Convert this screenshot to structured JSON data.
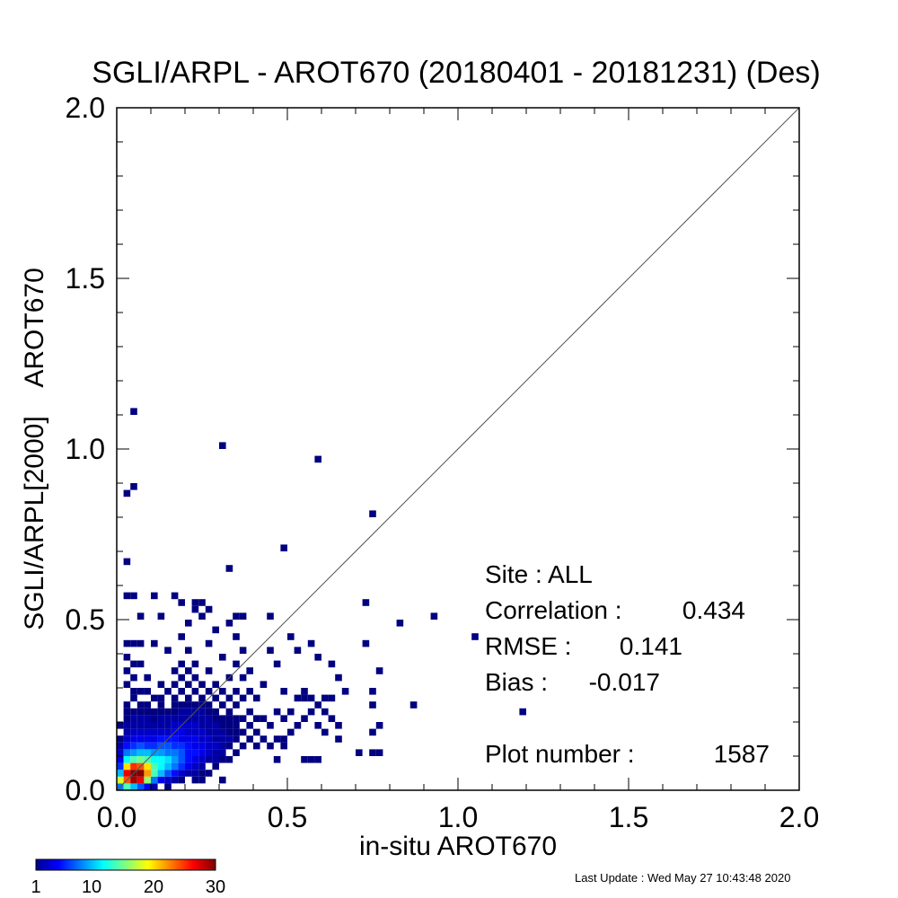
{
  "chart_data": {
    "type": "heatmap",
    "title": "SGLI/ARPL - AROT670 (20180401 - 20181231) (Des)",
    "xlabel": "in-situ AROT670",
    "ylabel": "SGLI/ARPL[2000]    AROT670",
    "xlim": [
      0.0,
      2.0
    ],
    "ylim": [
      0.0,
      2.0
    ],
    "x_ticks": [
      "0.0",
      "0.5",
      "1.0",
      "1.5",
      "2.0"
    ],
    "y_ticks": [
      "0.0",
      "0.5",
      "1.0",
      "1.5",
      "2.0"
    ],
    "bin_size": 0.02,
    "one_to_one_line": true,
    "colorbar": {
      "min": 1,
      "max": 30,
      "tick_labels": [
        "1",
        "10",
        "20",
        "30"
      ]
    },
    "stats": {
      "site": "Site : ALL",
      "correlation_label": "Correlation :",
      "correlation": "0.434",
      "rmse_label": "RMSE :",
      "rmse": "0.141",
      "bias_label": "Bias :",
      "bias": "-0.017",
      "plot_number_label": "Plot number :",
      "plot_number": "1587"
    },
    "cells": [
      [
        0.01,
        0.01,
        8
      ],
      [
        0.01,
        0.03,
        18
      ],
      [
        0.01,
        0.05,
        10
      ],
      [
        0.01,
        0.07,
        6
      ],
      [
        0.01,
        0.09,
        4
      ],
      [
        0.01,
        0.11,
        3
      ],
      [
        0.01,
        0.13,
        2
      ],
      [
        0.01,
        0.15,
        1
      ],
      [
        0.01,
        0.19,
        1
      ],
      [
        0.03,
        0.01,
        14
      ],
      [
        0.03,
        0.03,
        24
      ],
      [
        0.03,
        0.05,
        27
      ],
      [
        0.03,
        0.07,
        20
      ],
      [
        0.03,
        0.09,
        12
      ],
      [
        0.03,
        0.11,
        8
      ],
      [
        0.03,
        0.13,
        5
      ],
      [
        0.03,
        0.15,
        3
      ],
      [
        0.03,
        0.17,
        2
      ],
      [
        0.03,
        0.19,
        2
      ],
      [
        0.03,
        0.21,
        1
      ],
      [
        0.03,
        0.23,
        1
      ],
      [
        0.03,
        0.25,
        1
      ],
      [
        0.03,
        0.31,
        1
      ],
      [
        0.03,
        0.35,
        1
      ],
      [
        0.03,
        0.39,
        1
      ],
      [
        0.03,
        0.43,
        1
      ],
      [
        0.03,
        0.57,
        1
      ],
      [
        0.03,
        0.67,
        1
      ],
      [
        0.03,
        0.87,
        1
      ],
      [
        0.05,
        0.01,
        10
      ],
      [
        0.05,
        0.03,
        29
      ],
      [
        0.05,
        0.05,
        30
      ],
      [
        0.05,
        0.07,
        25
      ],
      [
        0.05,
        0.09,
        14
      ],
      [
        0.05,
        0.11,
        9
      ],
      [
        0.05,
        0.13,
        6
      ],
      [
        0.05,
        0.15,
        4
      ],
      [
        0.05,
        0.17,
        3
      ],
      [
        0.05,
        0.19,
        2
      ],
      [
        0.05,
        0.21,
        2
      ],
      [
        0.05,
        0.23,
        1
      ],
      [
        0.05,
        0.27,
        1
      ],
      [
        0.05,
        0.29,
        1
      ],
      [
        0.05,
        0.33,
        1
      ],
      [
        0.05,
        0.37,
        1
      ],
      [
        0.05,
        0.43,
        1
      ],
      [
        0.05,
        0.57,
        1
      ],
      [
        0.05,
        0.89,
        1
      ],
      [
        0.05,
        1.11,
        1
      ],
      [
        0.07,
        0.01,
        7
      ],
      [
        0.07,
        0.03,
        27
      ],
      [
        0.07,
        0.05,
        30
      ],
      [
        0.07,
        0.07,
        24
      ],
      [
        0.07,
        0.09,
        15
      ],
      [
        0.07,
        0.11,
        10
      ],
      [
        0.07,
        0.13,
        7
      ],
      [
        0.07,
        0.15,
        4
      ],
      [
        0.07,
        0.17,
        3
      ],
      [
        0.07,
        0.19,
        2
      ],
      [
        0.07,
        0.21,
        2
      ],
      [
        0.07,
        0.23,
        1
      ],
      [
        0.07,
        0.25,
        1
      ],
      [
        0.07,
        0.29,
        1
      ],
      [
        0.07,
        0.37,
        1
      ],
      [
        0.07,
        0.43,
        1
      ],
      [
        0.07,
        0.51,
        1
      ],
      [
        0.09,
        0.01,
        4
      ],
      [
        0.09,
        0.03,
        16
      ],
      [
        0.09,
        0.05,
        22
      ],
      [
        0.09,
        0.07,
        20
      ],
      [
        0.09,
        0.09,
        14
      ],
      [
        0.09,
        0.11,
        10
      ],
      [
        0.09,
        0.13,
        6
      ],
      [
        0.09,
        0.15,
        4
      ],
      [
        0.09,
        0.17,
        3
      ],
      [
        0.09,
        0.19,
        2
      ],
      [
        0.09,
        0.21,
        2
      ],
      [
        0.09,
        0.23,
        1
      ],
      [
        0.09,
        0.25,
        1
      ],
      [
        0.09,
        0.29,
        1
      ],
      [
        0.09,
        0.33,
        1
      ],
      [
        0.11,
        0.01,
        2
      ],
      [
        0.11,
        0.03,
        8
      ],
      [
        0.11,
        0.05,
        14
      ],
      [
        0.11,
        0.07,
        14
      ],
      [
        0.11,
        0.09,
        12
      ],
      [
        0.11,
        0.11,
        9
      ],
      [
        0.11,
        0.13,
        6
      ],
      [
        0.11,
        0.15,
        4
      ],
      [
        0.11,
        0.17,
        3
      ],
      [
        0.11,
        0.19,
        2
      ],
      [
        0.11,
        0.21,
        1
      ],
      [
        0.11,
        0.23,
        1
      ],
      [
        0.11,
        0.27,
        1
      ],
      [
        0.11,
        0.43,
        1
      ],
      [
        0.11,
        0.57,
        1
      ],
      [
        0.13,
        0.03,
        4
      ],
      [
        0.13,
        0.05,
        10
      ],
      [
        0.13,
        0.07,
        12
      ],
      [
        0.13,
        0.09,
        12
      ],
      [
        0.13,
        0.11,
        9
      ],
      [
        0.13,
        0.13,
        7
      ],
      [
        0.13,
        0.15,
        5
      ],
      [
        0.13,
        0.17,
        3
      ],
      [
        0.13,
        0.19,
        2
      ],
      [
        0.13,
        0.21,
        2
      ],
      [
        0.13,
        0.23,
        1
      ],
      [
        0.13,
        0.25,
        1
      ],
      [
        0.13,
        0.27,
        1
      ],
      [
        0.13,
        0.31,
        1
      ],
      [
        0.13,
        0.51,
        1
      ],
      [
        0.15,
        0.01,
        1
      ],
      [
        0.15,
        0.03,
        3
      ],
      [
        0.15,
        0.05,
        7
      ],
      [
        0.15,
        0.07,
        10
      ],
      [
        0.15,
        0.09,
        11
      ],
      [
        0.15,
        0.11,
        8
      ],
      [
        0.15,
        0.13,
        7
      ],
      [
        0.15,
        0.15,
        5
      ],
      [
        0.15,
        0.17,
        3
      ],
      [
        0.15,
        0.19,
        2
      ],
      [
        0.15,
        0.21,
        2
      ],
      [
        0.15,
        0.23,
        1
      ],
      [
        0.15,
        0.29,
        1
      ],
      [
        0.15,
        0.41,
        1
      ],
      [
        0.17,
        0.03,
        2
      ],
      [
        0.17,
        0.05,
        5
      ],
      [
        0.17,
        0.07,
        8
      ],
      [
        0.17,
        0.09,
        9
      ],
      [
        0.17,
        0.11,
        8
      ],
      [
        0.17,
        0.13,
        6
      ],
      [
        0.17,
        0.15,
        5
      ],
      [
        0.17,
        0.17,
        4
      ],
      [
        0.17,
        0.19,
        3
      ],
      [
        0.17,
        0.21,
        2
      ],
      [
        0.17,
        0.23,
        1
      ],
      [
        0.17,
        0.25,
        1
      ],
      [
        0.17,
        0.27,
        1
      ],
      [
        0.17,
        0.31,
        1
      ],
      [
        0.17,
        0.35,
        1
      ],
      [
        0.17,
        0.57,
        1
      ],
      [
        0.19,
        0.03,
        1
      ],
      [
        0.19,
        0.05,
        3
      ],
      [
        0.19,
        0.07,
        6
      ],
      [
        0.19,
        0.09,
        7
      ],
      [
        0.19,
        0.11,
        7
      ],
      [
        0.19,
        0.13,
        6
      ],
      [
        0.19,
        0.15,
        4
      ],
      [
        0.19,
        0.17,
        4
      ],
      [
        0.19,
        0.19,
        3
      ],
      [
        0.19,
        0.21,
        2
      ],
      [
        0.19,
        0.23,
        2
      ],
      [
        0.19,
        0.25,
        1
      ],
      [
        0.19,
        0.29,
        1
      ],
      [
        0.19,
        0.33,
        1
      ],
      [
        0.19,
        0.37,
        1
      ],
      [
        0.19,
        0.45,
        1
      ],
      [
        0.19,
        0.55,
        1
      ],
      [
        0.21,
        0.05,
        2
      ],
      [
        0.21,
        0.07,
        4
      ],
      [
        0.21,
        0.09,
        5
      ],
      [
        0.21,
        0.11,
        5
      ],
      [
        0.21,
        0.13,
        5
      ],
      [
        0.21,
        0.15,
        4
      ],
      [
        0.21,
        0.17,
        3
      ],
      [
        0.21,
        0.19,
        3
      ],
      [
        0.21,
        0.21,
        2
      ],
      [
        0.21,
        0.23,
        2
      ],
      [
        0.21,
        0.25,
        1
      ],
      [
        0.21,
        0.27,
        1
      ],
      [
        0.21,
        0.31,
        1
      ],
      [
        0.21,
        0.35,
        1
      ],
      [
        0.21,
        0.41,
        1
      ],
      [
        0.21,
        0.49,
        1
      ],
      [
        0.23,
        0.03,
        1
      ],
      [
        0.23,
        0.05,
        2
      ],
      [
        0.23,
        0.07,
        3
      ],
      [
        0.23,
        0.09,
        4
      ],
      [
        0.23,
        0.11,
        5
      ],
      [
        0.23,
        0.13,
        4
      ],
      [
        0.23,
        0.15,
        4
      ],
      [
        0.23,
        0.17,
        3
      ],
      [
        0.23,
        0.19,
        3
      ],
      [
        0.23,
        0.21,
        2
      ],
      [
        0.23,
        0.23,
        2
      ],
      [
        0.23,
        0.25,
        1
      ],
      [
        0.23,
        0.29,
        1
      ],
      [
        0.23,
        0.33,
        1
      ],
      [
        0.23,
        0.37,
        1
      ],
      [
        0.23,
        0.53,
        1
      ],
      [
        0.23,
        0.55,
        1
      ],
      [
        0.25,
        0.03,
        1
      ],
      [
        0.25,
        0.05,
        1
      ],
      [
        0.25,
        0.07,
        2
      ],
      [
        0.25,
        0.09,
        3
      ],
      [
        0.25,
        0.11,
        4
      ],
      [
        0.25,
        0.13,
        4
      ],
      [
        0.25,
        0.15,
        3
      ],
      [
        0.25,
        0.17,
        3
      ],
      [
        0.25,
        0.19,
        2
      ],
      [
        0.25,
        0.21,
        2
      ],
      [
        0.25,
        0.23,
        2
      ],
      [
        0.25,
        0.25,
        1
      ],
      [
        0.25,
        0.27,
        1
      ],
      [
        0.25,
        0.31,
        1
      ],
      [
        0.25,
        0.51,
        1
      ],
      [
        0.25,
        0.55,
        1
      ],
      [
        0.27,
        0.05,
        1
      ],
      [
        0.27,
        0.09,
        2
      ],
      [
        0.27,
        0.11,
        3
      ],
      [
        0.27,
        0.13,
        3
      ],
      [
        0.27,
        0.15,
        3
      ],
      [
        0.27,
        0.17,
        2
      ],
      [
        0.27,
        0.19,
        2
      ],
      [
        0.27,
        0.21,
        2
      ],
      [
        0.27,
        0.23,
        1
      ],
      [
        0.27,
        0.25,
        1
      ],
      [
        0.27,
        0.29,
        1
      ],
      [
        0.27,
        0.35,
        1
      ],
      [
        0.27,
        0.43,
        1
      ],
      [
        0.27,
        0.53,
        1
      ],
      [
        0.29,
        0.07,
        1
      ],
      [
        0.29,
        0.09,
        2
      ],
      [
        0.29,
        0.11,
        2
      ],
      [
        0.29,
        0.13,
        3
      ],
      [
        0.29,
        0.15,
        2
      ],
      [
        0.29,
        0.17,
        2
      ],
      [
        0.29,
        0.19,
        2
      ],
      [
        0.29,
        0.21,
        1
      ],
      [
        0.29,
        0.23,
        1
      ],
      [
        0.29,
        0.27,
        1
      ],
      [
        0.29,
        0.31,
        1
      ],
      [
        0.29,
        0.47,
        1
      ],
      [
        0.31,
        0.03,
        1
      ],
      [
        0.31,
        0.09,
        1
      ],
      [
        0.31,
        0.11,
        2
      ],
      [
        0.31,
        0.13,
        2
      ],
      [
        0.31,
        0.15,
        2
      ],
      [
        0.31,
        0.17,
        2
      ],
      [
        0.31,
        0.19,
        1
      ],
      [
        0.31,
        0.21,
        1
      ],
      [
        0.31,
        0.25,
        1
      ],
      [
        0.31,
        0.29,
        1
      ],
      [
        0.31,
        0.39,
        1
      ],
      [
        0.31,
        1.01,
        1
      ],
      [
        0.33,
        0.09,
        1
      ],
      [
        0.33,
        0.13,
        1
      ],
      [
        0.33,
        0.15,
        2
      ],
      [
        0.33,
        0.17,
        1
      ],
      [
        0.33,
        0.19,
        1
      ],
      [
        0.33,
        0.21,
        1
      ],
      [
        0.33,
        0.23,
        1
      ],
      [
        0.33,
        0.27,
        1
      ],
      [
        0.33,
        0.33,
        1
      ],
      [
        0.33,
        0.49,
        1
      ],
      [
        0.33,
        0.65,
        1
      ],
      [
        0.35,
        0.11,
        1
      ],
      [
        0.35,
        0.15,
        1
      ],
      [
        0.35,
        0.17,
        1
      ],
      [
        0.35,
        0.19,
        1
      ],
      [
        0.35,
        0.21,
        1
      ],
      [
        0.35,
        0.25,
        1
      ],
      [
        0.35,
        0.29,
        1
      ],
      [
        0.35,
        0.37,
        1
      ],
      [
        0.35,
        0.45,
        1
      ],
      [
        0.35,
        0.51,
        1
      ],
      [
        0.37,
        0.13,
        1
      ],
      [
        0.37,
        0.17,
        1
      ],
      [
        0.37,
        0.21,
        1
      ],
      [
        0.37,
        0.27,
        1
      ],
      [
        0.37,
        0.33,
        1
      ],
      [
        0.37,
        0.41,
        1
      ],
      [
        0.37,
        0.51,
        1
      ],
      [
        0.39,
        0.15,
        1
      ],
      [
        0.39,
        0.19,
        1
      ],
      [
        0.39,
        0.23,
        1
      ],
      [
        0.39,
        0.29,
        1
      ],
      [
        0.39,
        0.35,
        1
      ],
      [
        0.41,
        0.13,
        1
      ],
      [
        0.41,
        0.17,
        1
      ],
      [
        0.41,
        0.21,
        1
      ],
      [
        0.41,
        0.27,
        1
      ],
      [
        0.43,
        0.15,
        1
      ],
      [
        0.43,
        0.21,
        1
      ],
      [
        0.43,
        0.31,
        1
      ],
      [
        0.45,
        0.13,
        1
      ],
      [
        0.45,
        0.19,
        1
      ],
      [
        0.45,
        0.41,
        1
      ],
      [
        0.45,
        0.51,
        1
      ],
      [
        0.47,
        0.09,
        1
      ],
      [
        0.47,
        0.15,
        1
      ],
      [
        0.47,
        0.23,
        1
      ],
      [
        0.47,
        0.37,
        1
      ],
      [
        0.49,
        0.13,
        1
      ],
      [
        0.49,
        0.15,
        1
      ],
      [
        0.49,
        0.21,
        1
      ],
      [
        0.49,
        0.29,
        1
      ],
      [
        0.49,
        0.71,
        1
      ],
      [
        0.51,
        0.17,
        1
      ],
      [
        0.51,
        0.23,
        1
      ],
      [
        0.51,
        0.45,
        1
      ],
      [
        0.53,
        0.19,
        1
      ],
      [
        0.53,
        0.27,
        1
      ],
      [
        0.53,
        0.41,
        1
      ],
      [
        0.55,
        0.09,
        1
      ],
      [
        0.55,
        0.21,
        1
      ],
      [
        0.55,
        0.27,
        1
      ],
      [
        0.55,
        0.29,
        1
      ],
      [
        0.57,
        0.09,
        1
      ],
      [
        0.57,
        0.23,
        1
      ],
      [
        0.57,
        0.27,
        1
      ],
      [
        0.57,
        0.43,
        1
      ],
      [
        0.59,
        0.09,
        1
      ],
      [
        0.59,
        0.19,
        1
      ],
      [
        0.59,
        0.25,
        1
      ],
      [
        0.59,
        0.39,
        1
      ],
      [
        0.59,
        0.97,
        1
      ],
      [
        0.61,
        0.17,
        1
      ],
      [
        0.61,
        0.23,
        1
      ],
      [
        0.61,
        0.27,
        1
      ],
      [
        0.63,
        0.21,
        1
      ],
      [
        0.63,
        0.27,
        1
      ],
      [
        0.63,
        0.37,
        1
      ],
      [
        0.65,
        0.15,
        1
      ],
      [
        0.65,
        0.19,
        1
      ],
      [
        0.65,
        0.33,
        1
      ],
      [
        0.67,
        0.29,
        1
      ],
      [
        0.71,
        0.11,
        1
      ],
      [
        0.73,
        0.43,
        1
      ],
      [
        0.73,
        0.55,
        1
      ],
      [
        0.75,
        0.11,
        1
      ],
      [
        0.75,
        0.17,
        1
      ],
      [
        0.75,
        0.25,
        1
      ],
      [
        0.75,
        0.29,
        1
      ],
      [
        0.75,
        0.81,
        1
      ],
      [
        0.77,
        0.11,
        1
      ],
      [
        0.77,
        0.19,
        1
      ],
      [
        0.77,
        0.35,
        1
      ],
      [
        0.83,
        0.49,
        1
      ],
      [
        0.87,
        0.25,
        1
      ],
      [
        0.93,
        0.51,
        1
      ],
      [
        1.05,
        0.45,
        1
      ],
      [
        1.19,
        0.23,
        1
      ]
    ]
  },
  "footer": {
    "last_update": "Last Update : Wed May 27 10:43:48 2020"
  }
}
